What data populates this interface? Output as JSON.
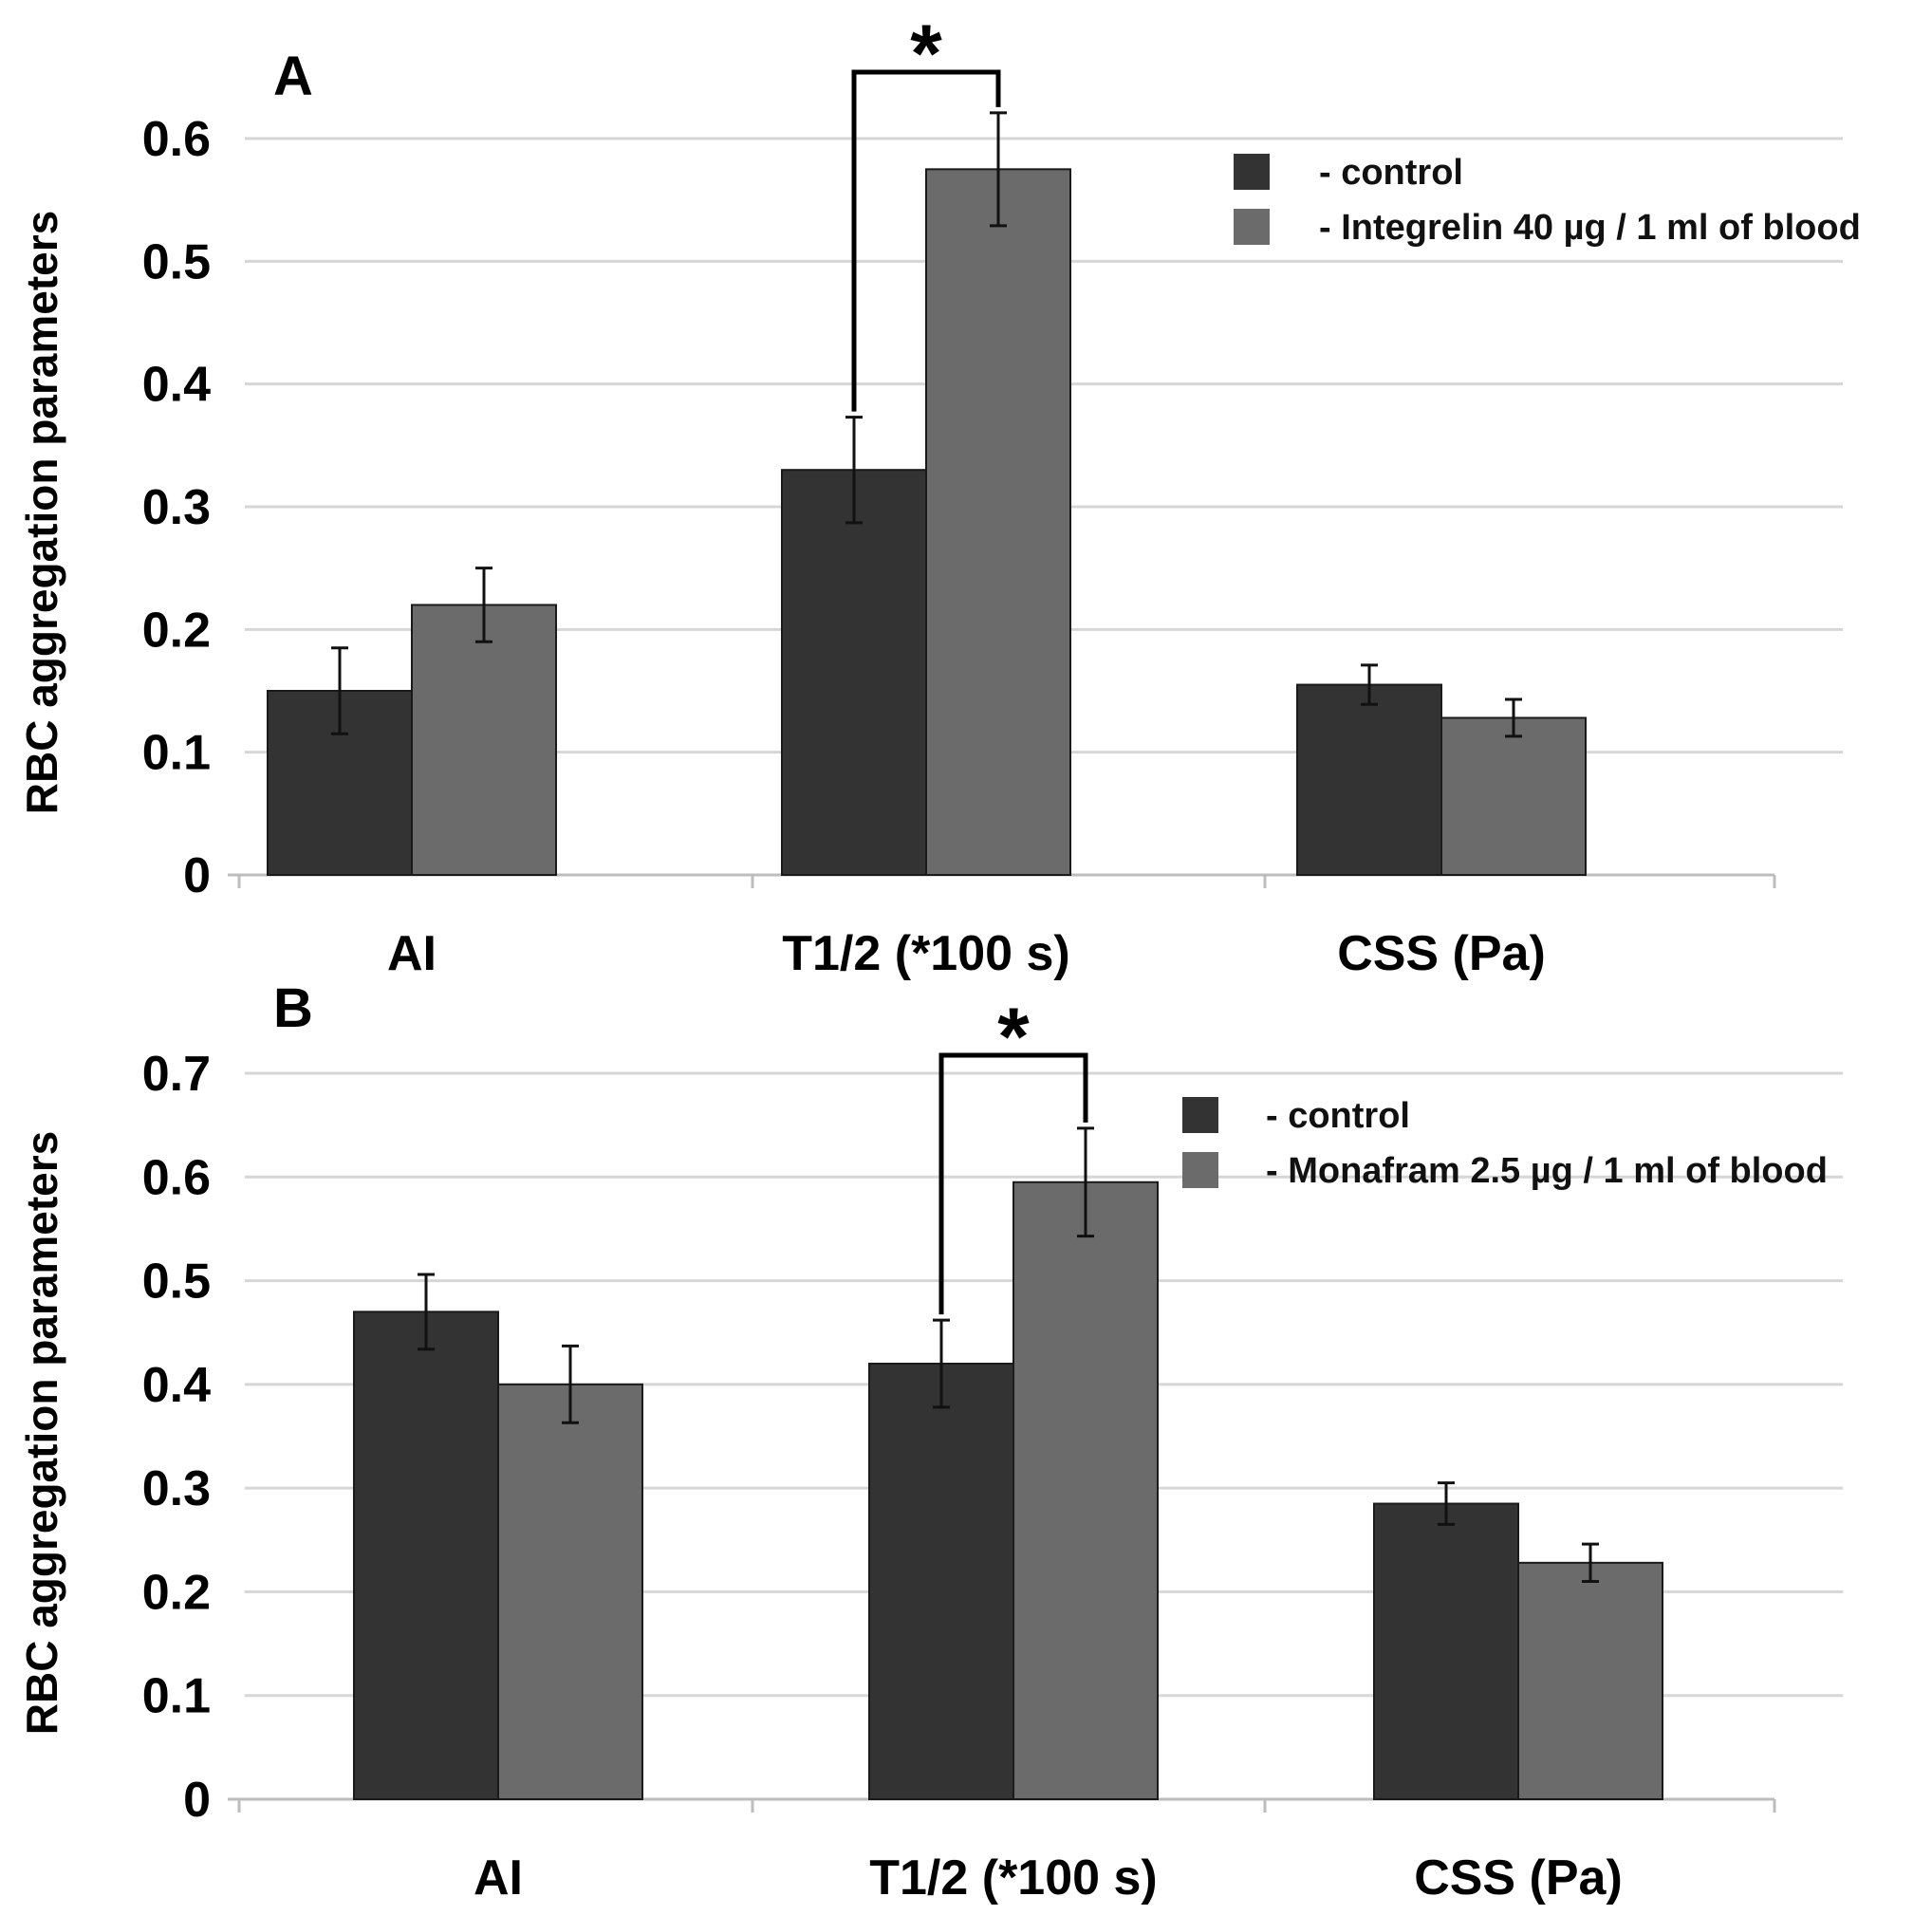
{
  "chart_data": [
    {
      "panel": "A",
      "type": "bar",
      "ylabel": "RBC aggregation parameters",
      "categories": [
        "AI",
        "T1/2 (*100 s)",
        "CSS (Pa)"
      ],
      "ylim": [
        0,
        0.6
      ],
      "yticks": [
        "0",
        "0.1",
        "0.2",
        "0.3",
        "0.4",
        "0.5",
        "0.6"
      ],
      "grid": true,
      "legend_position": "top-right",
      "series": [
        {
          "name": "control",
          "legend_text": "-  control",
          "color": "#333333",
          "values": [
            0.15,
            0.33,
            0.155
          ],
          "errors": [
            0.035,
            0.043,
            0.016
          ]
        },
        {
          "name": "Integrelin 40 µg / 1 ml of blood",
          "legend_text": "-  Integrelin 40 µg / 1 ml of blood",
          "color": "#6b6b6b",
          "values": [
            0.22,
            0.575,
            0.128
          ],
          "errors": [
            0.03,
            0.046,
            0.015
          ]
        }
      ],
      "significance": {
        "category_index": 1,
        "label": "*"
      }
    },
    {
      "panel": "B",
      "type": "bar",
      "ylabel": "RBC aggregation parameters",
      "categories": [
        "AI",
        "T1/2 (*100 s)",
        "CSS (Pa)"
      ],
      "ylim": [
        0,
        0.7
      ],
      "yticks": [
        "0",
        "0.1",
        "0.2",
        "0.3",
        "0.4",
        "0.5",
        "0.6",
        "0.7"
      ],
      "grid": true,
      "legend_position": "top-right",
      "series": [
        {
          "name": "control",
          "legend_text": "- control",
          "color": "#333333",
          "values": [
            0.47,
            0.42,
            0.285
          ],
          "errors": [
            0.036,
            0.042,
            0.02
          ]
        },
        {
          "name": "Monafram 2.5 µg / 1 ml of blood",
          "legend_text": "- Monafram 2.5 µg / 1 ml of blood",
          "color": "#6b6b6b",
          "values": [
            0.4,
            0.595,
            0.228
          ],
          "errors": [
            0.037,
            0.052,
            0.018
          ]
        }
      ],
      "significance": {
        "category_index": 1,
        "label": "*"
      }
    }
  ]
}
